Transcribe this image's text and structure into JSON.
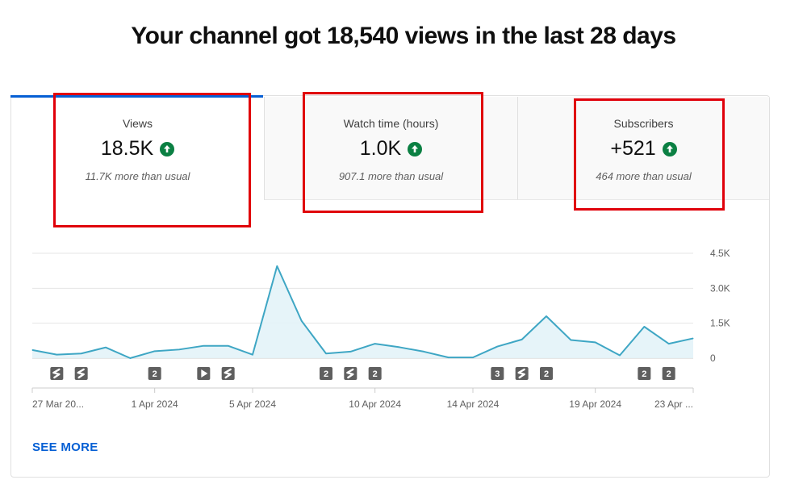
{
  "headline": "Your channel got 18,540 views in the last 28 days",
  "tabs": [
    {
      "label": "Views",
      "value": "18.5K",
      "subtext": "11.7K more than usual",
      "trend_icon": "arrow-up-icon",
      "active": true
    },
    {
      "label": "Watch time (hours)",
      "value": "1.0K",
      "subtext": "907.1 more than usual",
      "trend_icon": "arrow-up-icon",
      "active": false
    },
    {
      "label": "Subscribers",
      "value": "+521",
      "subtext": "464 more than usual",
      "trend_icon": "arrow-up-icon",
      "active": false
    }
  ],
  "see_more": "SEE MORE",
  "colors": {
    "accent": "#065fd4",
    "trend_up": "#0b8043",
    "series_line": "#3ea6c4",
    "highlight_box": "#e0000a"
  },
  "chart_data": {
    "type": "area",
    "title": "",
    "xlabel": "",
    "ylabel": "",
    "x": [
      "27 Mar 2024",
      "28 Mar 2024",
      "29 Mar 2024",
      "30 Mar 2024",
      "31 Mar 2024",
      "1 Apr 2024",
      "2 Apr 2024",
      "3 Apr 2024",
      "4 Apr 2024",
      "5 Apr 2024",
      "6 Apr 2024",
      "7 Apr 2024",
      "8 Apr 2024",
      "9 Apr 2024",
      "10 Apr 2024",
      "11 Apr 2024",
      "12 Apr 2024",
      "13 Apr 2024",
      "14 Apr 2024",
      "15 Apr 2024",
      "16 Apr 2024",
      "17 Apr 2024",
      "18 Apr 2024",
      "19 Apr 2024",
      "20 Apr 2024",
      "21 Apr 2024",
      "22 Apr 2024",
      "23 Apr 2024"
    ],
    "series": [
      {
        "values": [
          350,
          150,
          200,
          460,
          0,
          300,
          370,
          530,
          530,
          150,
          3950,
          1600,
          200,
          280,
          620,
          470,
          280,
          30,
          30,
          500,
          800,
          1800,
          780,
          680,
          120,
          1350,
          620,
          850
        ]
      }
    ],
    "ylim": [
      0,
      4500
    ],
    "yticks": [
      0,
      1500,
      3000,
      4500
    ],
    "ytick_labels": [
      "0",
      "1.5K",
      "3.0K",
      "4.5K"
    ],
    "x_tick_labels": [
      {
        "index": 0,
        "label": "27 Mar 20..."
      },
      {
        "index": 5,
        "label": "1 Apr 2024"
      },
      {
        "index": 9,
        "label": "5 Apr 2024"
      },
      {
        "index": 14,
        "label": "10 Apr 2024"
      },
      {
        "index": 18,
        "label": "14 Apr 2024"
      },
      {
        "index": 23,
        "label": "19 Apr 2024"
      },
      {
        "index": 27,
        "label": "23 Apr ..."
      }
    ],
    "upload_markers": [
      {
        "index": 1,
        "kind": "shorts",
        "icon": "shorts-icon"
      },
      {
        "index": 2,
        "kind": "shorts",
        "icon": "shorts-icon"
      },
      {
        "index": 5,
        "kind": "count",
        "label": "2"
      },
      {
        "index": 7,
        "kind": "video",
        "icon": "play-icon"
      },
      {
        "index": 8,
        "kind": "shorts",
        "icon": "shorts-icon"
      },
      {
        "index": 12,
        "kind": "count",
        "label": "2"
      },
      {
        "index": 13,
        "kind": "shorts",
        "icon": "shorts-icon"
      },
      {
        "index": 14,
        "kind": "count",
        "label": "2"
      },
      {
        "index": 19,
        "kind": "count",
        "label": "3"
      },
      {
        "index": 20,
        "kind": "shorts",
        "icon": "shorts-icon"
      },
      {
        "index": 21,
        "kind": "count",
        "label": "2"
      },
      {
        "index": 25,
        "kind": "count",
        "label": "2"
      },
      {
        "index": 26,
        "kind": "count",
        "label": "2"
      }
    ],
    "grid": true,
    "legend": "none"
  }
}
